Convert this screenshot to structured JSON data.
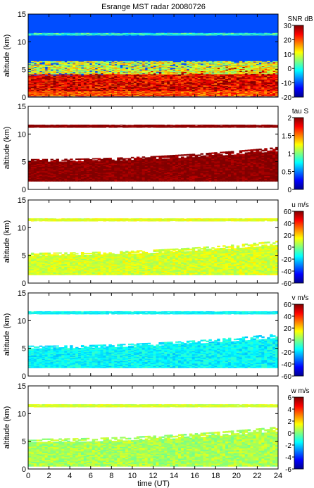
{
  "chart_data": {
    "type": "heatmap",
    "title": "Esrange MST radar 20080726",
    "xlabel": "time (UT)",
    "xlim": [
      0,
      24
    ],
    "xticks": [
      0,
      2,
      4,
      6,
      8,
      10,
      12,
      14,
      16,
      18,
      20,
      22,
      24
    ],
    "grid": false,
    "panels": [
      {
        "id": "snr",
        "ylabel": "altitude (km)",
        "ylim": [
          0,
          15
        ],
        "yticks": [
          0,
          5,
          10,
          15
        ],
        "colorbar": {
          "label": "SNR dB",
          "range": [
            -20,
            30
          ],
          "ticks": [
            -20,
            -10,
            0,
            10,
            20,
            30
          ]
        },
        "layers": [
          {
            "alt": [
              0,
              15
            ],
            "value": -10
          },
          {
            "alt": [
              0.2,
              1.2
            ],
            "value": 20
          },
          {
            "alt": [
              1.2,
              4.2
            ],
            "value": 25
          },
          {
            "alt": [
              4.2,
              6.5
            ],
            "value": 10
          },
          {
            "alt": [
              11.2,
              11.6
            ],
            "value": 0
          }
        ]
      },
      {
        "id": "tau",
        "ylabel": "altitude (km)",
        "ylim": [
          0,
          15
        ],
        "yticks": [
          0,
          5,
          10,
          15
        ],
        "colorbar": {
          "label": "tau S",
          "range": [
            0,
            2
          ],
          "ticks": [
            0,
            0.5,
            1,
            1.5,
            2
          ]
        },
        "layers": [
          {
            "alt": [
              1.5,
              5.5
            ],
            "value": 2
          },
          {
            "alt": [
              11.2,
              11.7
            ],
            "value": 2
          }
        ]
      },
      {
        "id": "u",
        "ylabel": "altitude (km)",
        "ylim": [
          0,
          15
        ],
        "yticks": [
          0,
          5,
          10,
          15
        ],
        "colorbar": {
          "label": "u m/s",
          "range": [
            -60,
            60
          ],
          "ticks": [
            -60,
            -40,
            -20,
            0,
            20,
            40,
            60
          ]
        },
        "layers": [
          {
            "alt": [
              1.5,
              5.5
            ],
            "value": 10
          },
          {
            "alt": [
              11.2,
              11.7
            ],
            "value": 12
          }
        ]
      },
      {
        "id": "v",
        "ylabel": "altitude (km)",
        "ylim": [
          0,
          15
        ],
        "yticks": [
          0,
          5,
          10,
          15
        ],
        "colorbar": {
          "label": "v m/s",
          "range": [
            -60,
            60
          ],
          "ticks": [
            -60,
            -40,
            -20,
            0,
            20,
            40,
            60
          ]
        },
        "layers": [
          {
            "alt": [
              1.5,
              5.5
            ],
            "value": -15
          },
          {
            "alt": [
              11.2,
              11.7
            ],
            "value": -15
          }
        ]
      },
      {
        "id": "w",
        "ylabel": "altitude (km)",
        "ylim": [
          0,
          15
        ],
        "yticks": [
          0,
          5,
          10,
          15
        ],
        "colorbar": {
          "label": "w m/s",
          "range": [
            -6,
            6
          ],
          "ticks": [
            -6,
            -4,
            -2,
            0,
            2,
            4,
            6
          ]
        },
        "layers": [
          {
            "alt": [
              0.5,
              5.5
            ],
            "value": 0.5
          },
          {
            "alt": [
              11.2,
              11.7
            ],
            "value": 1
          }
        ]
      }
    ]
  }
}
